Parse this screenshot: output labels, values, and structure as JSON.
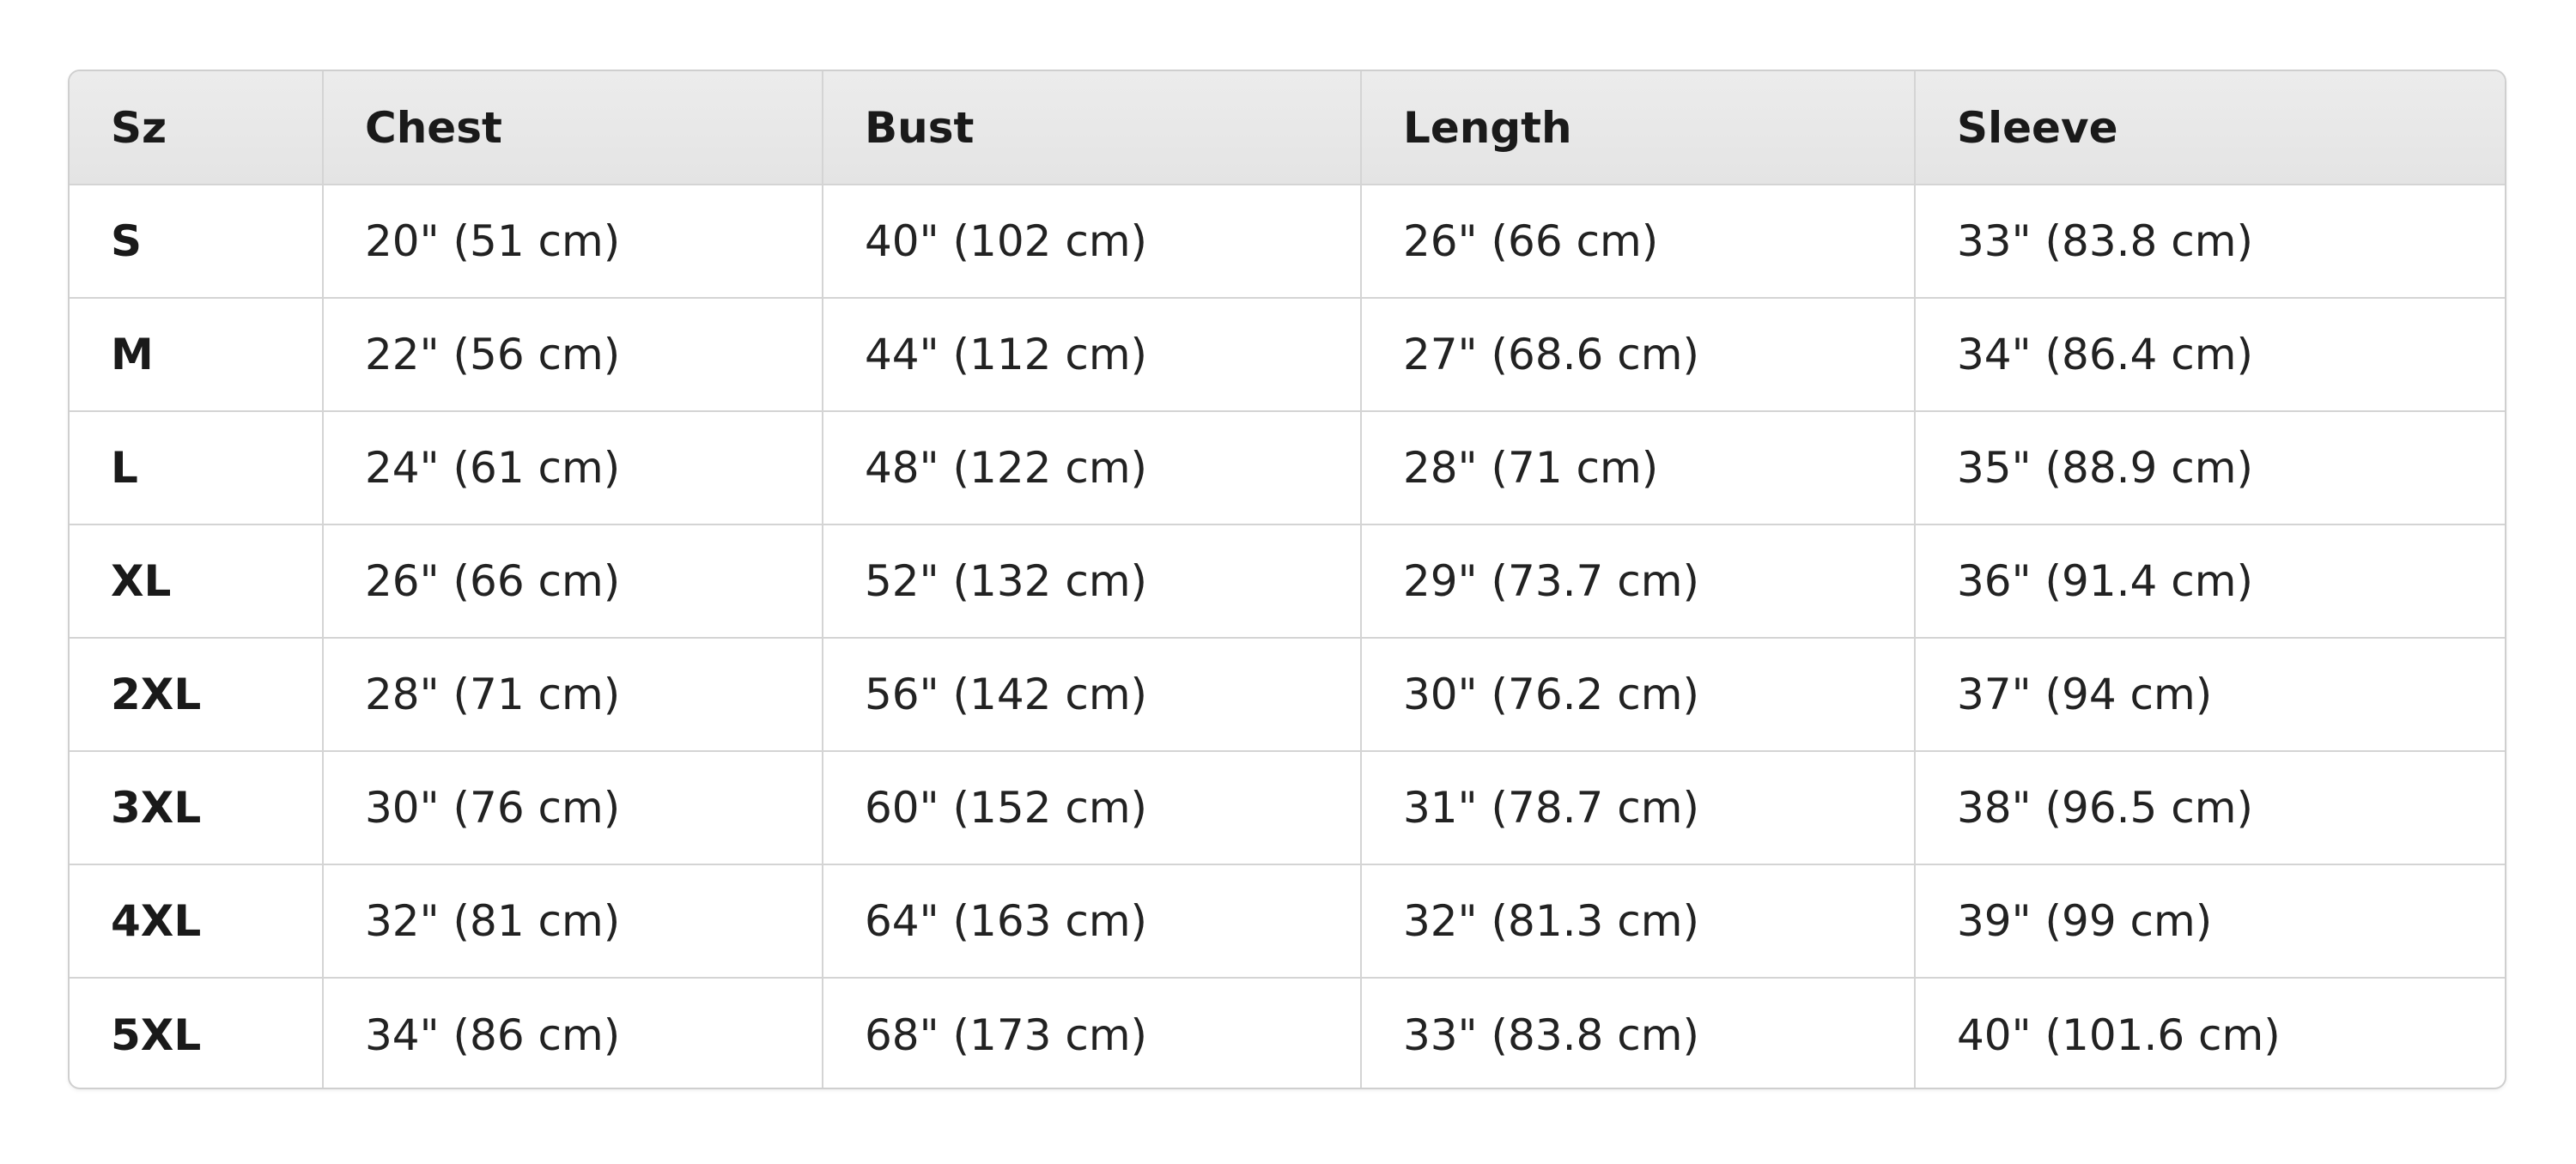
{
  "size_chart": {
    "headers": [
      "Sz",
      "Chest",
      "Bust",
      "Length",
      "Sleeve"
    ],
    "rows": [
      [
        "S",
        "20\" (51 cm)",
        "40\" (102 cm)",
        "26\" (66 cm)",
        "33\" (83.8 cm)"
      ],
      [
        "M",
        "22\" (56 cm)",
        "44\" (112 cm)",
        "27\" (68.6 cm)",
        "34\" (86.4 cm)"
      ],
      [
        "L",
        "24\" (61 cm)",
        "48\" (122 cm)",
        "28\" (71 cm)",
        "35\" (88.9 cm)"
      ],
      [
        "XL",
        "26\" (66 cm)",
        "52\" (132 cm)",
        "29\" (73.7 cm)",
        "36\" (91.4 cm)"
      ],
      [
        "2XL",
        "28\" (71 cm)",
        "56\" (142 cm)",
        "30\" (76.2 cm)",
        "37\" (94 cm)"
      ],
      [
        "3XL",
        "30\" (76 cm)",
        "60\" (152 cm)",
        "31\" (78.7 cm)",
        "38\" (96.5 cm)"
      ],
      [
        "4XL",
        "32\" (81 cm)",
        "64\" (163 cm)",
        "32\" (81.3 cm)",
        "39\" (99 cm)"
      ],
      [
        "5XL",
        "34\" (86 cm)",
        "68\" (173 cm)",
        "33\" (83.8 cm)",
        "40\" (101.6 cm)"
      ]
    ]
  },
  "colors": {
    "header_background": "#e8e8e8",
    "border": "#d4d4d4",
    "text": "#1e1e1e"
  }
}
